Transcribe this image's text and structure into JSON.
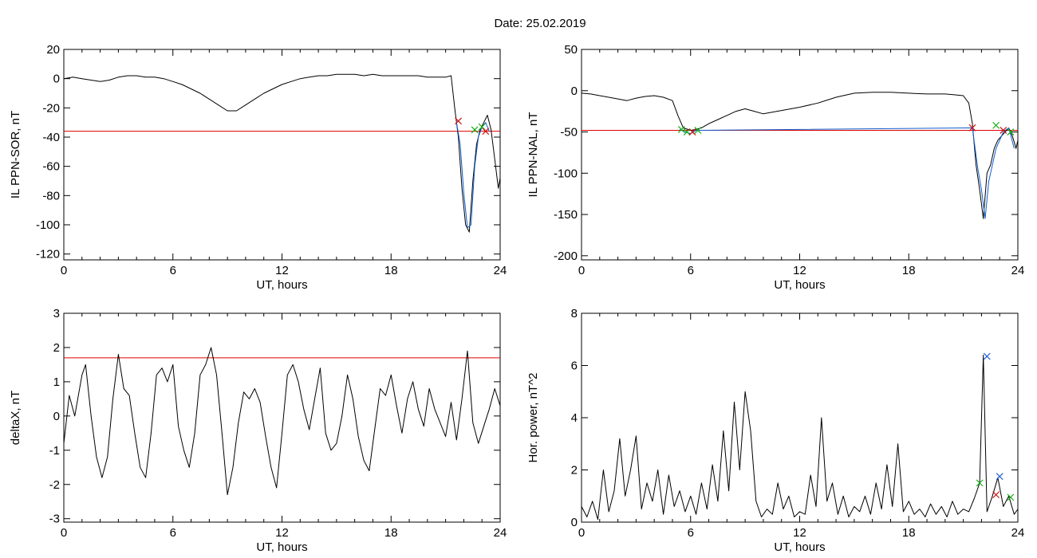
{
  "figure": {
    "date_label": "Date:  25.02.2019"
  },
  "colors": {
    "trace": "#000000",
    "threshold": "#e00000",
    "highlight": "#1060d0",
    "marker_red": "#d01010",
    "marker_green": "#10b010",
    "marker_blue": "#2060d0"
  },
  "chart_data": [
    {
      "id": "sor",
      "type": "line",
      "title": "",
      "xlabel": "UT, hours",
      "ylabel": "IL PPN-SOR, nT",
      "xlim": [
        0,
        24
      ],
      "ylim": [
        -124,
        20
      ],
      "xticks": [
        0,
        6,
        12,
        18,
        24
      ],
      "yticks": [
        20,
        0,
        -20,
        -40,
        -60,
        -80,
        -100,
        -120
      ],
      "threshold": -36,
      "series": [
        {
          "role": "trace",
          "x": [
            0,
            0.5,
            1,
            1.5,
            2,
            2.5,
            3,
            3.5,
            4,
            4.5,
            5,
            5.5,
            6,
            6.5,
            7,
            7.5,
            8,
            8.5,
            9,
            9.5,
            10,
            10.5,
            11,
            11.5,
            12,
            12.5,
            13,
            13.5,
            14,
            14.5,
            15,
            15.5,
            16,
            16.5,
            17,
            17.5,
            18,
            18.5,
            19,
            19.5,
            20,
            20.5,
            21,
            21.3,
            21.5,
            21.7,
            21.9,
            22.1,
            22.3,
            22.5,
            22.7,
            22.9,
            23.1,
            23.3,
            23.5,
            23.7,
            23.9,
            24
          ],
          "y": [
            0,
            1,
            0,
            -1,
            -2,
            -1,
            1,
            2,
            2,
            1,
            1,
            0,
            -2,
            -4,
            -7,
            -10,
            -14,
            -18,
            -22,
            -22,
            -18,
            -14,
            -10,
            -7,
            -4,
            -2,
            0,
            1,
            2,
            2,
            3,
            3,
            3,
            2,
            3,
            2,
            2,
            2,
            2,
            2,
            1,
            1,
            1,
            2,
            -20,
            -40,
            -75,
            -100,
            -105,
            -70,
            -45,
            -35,
            -30,
            -25,
            -35,
            -55,
            -75,
            -68
          ]
        },
        {
          "role": "highlight",
          "x": [
            21.6,
            21.8,
            22,
            22.2,
            22.4,
            22.6,
            22.8,
            23.0,
            23.2,
            23.4
          ],
          "y": [
            -30,
            -45,
            -78,
            -102,
            -100,
            -60,
            -40,
            -33,
            -30,
            -36
          ]
        }
      ],
      "markers": [
        {
          "x": 21.7,
          "y": -29,
          "color": "red"
        },
        {
          "x": 22.6,
          "y": -35,
          "color": "green"
        },
        {
          "x": 23.0,
          "y": -33,
          "color": "green"
        },
        {
          "x": 23.2,
          "y": -36,
          "color": "red"
        }
      ]
    },
    {
      "id": "nal",
      "type": "line",
      "title": "",
      "xlabel": "UT, hours",
      "ylabel": "IL PPN-NAL, nT",
      "xlim": [
        0,
        24
      ],
      "ylim": [
        -205,
        50
      ],
      "xticks": [
        0,
        6,
        12,
        18,
        24
      ],
      "yticks": [
        50,
        0,
        -50,
        -100,
        -150,
        -200
      ],
      "threshold": -48,
      "series": [
        {
          "role": "trace",
          "x": [
            0,
            0.5,
            1,
            1.5,
            2,
            2.5,
            3,
            3.5,
            4,
            4.5,
            5,
            5.3,
            5.6,
            6,
            6.3,
            6.6,
            7,
            7.5,
            8,
            8.5,
            9,
            9.5,
            10,
            11,
            12,
            13,
            14,
            15,
            16,
            17,
            18,
            19,
            20,
            20.5,
            21,
            21.3,
            21.5,
            21.7,
            21.9,
            22.1,
            22.3,
            22.5,
            22.7,
            22.9,
            23.1,
            23.3,
            23.5,
            23.7,
            23.9,
            24
          ],
          "y": [
            -3,
            -4,
            -6,
            -8,
            -10,
            -12,
            -9,
            -7,
            -6,
            -8,
            -12,
            -30,
            -45,
            -48,
            -47,
            -45,
            -40,
            -35,
            -30,
            -25,
            -22,
            -25,
            -28,
            -24,
            -20,
            -15,
            -8,
            -3,
            -2,
            -2,
            -3,
            -4,
            -4,
            -5,
            -6,
            -15,
            -40,
            -90,
            -120,
            -155,
            -100,
            -90,
            -70,
            -60,
            -55,
            -50,
            -45,
            -55,
            -70,
            -60
          ]
        },
        {
          "role": "highlight",
          "x": [
            5.4,
            5.7,
            6.0,
            6.3,
            21.5,
            21.8,
            22.0,
            22.2,
            22.4,
            22.6,
            22.8,
            23.0,
            23.2,
            23.5,
            23.8
          ],
          "y": [
            -47,
            -50,
            -52,
            -48,
            -45,
            -95,
            -120,
            -155,
            -110,
            -90,
            -70,
            -60,
            -50,
            -45,
            -70
          ]
        }
      ],
      "markers": [
        {
          "x": 5.5,
          "y": -47,
          "color": "green"
        },
        {
          "x": 5.8,
          "y": -50,
          "color": "green"
        },
        {
          "x": 6.1,
          "y": -50,
          "color": "red"
        },
        {
          "x": 6.4,
          "y": -48,
          "color": "green"
        },
        {
          "x": 21.5,
          "y": -45,
          "color": "red"
        },
        {
          "x": 22.8,
          "y": -42,
          "color": "green"
        },
        {
          "x": 23.2,
          "y": -48,
          "color": "red"
        },
        {
          "x": 23.6,
          "y": -50,
          "color": "green"
        }
      ]
    },
    {
      "id": "deltax",
      "type": "line",
      "title": "",
      "xlabel": "UT, hours",
      "ylabel": "deltaX, nT",
      "xlim": [
        0,
        24
      ],
      "ylim": [
        -3.1,
        3
      ],
      "xticks": [
        0,
        6,
        12,
        18,
        24
      ],
      "yticks": [
        3,
        2,
        1,
        0,
        -1,
        -2,
        -3
      ],
      "threshold": 1.7,
      "series": [
        {
          "role": "trace",
          "x": [
            0,
            0.3,
            0.6,
            1,
            1.2,
            1.5,
            1.8,
            2.1,
            2.4,
            2.7,
            3,
            3.3,
            3.6,
            3.9,
            4.2,
            4.5,
            4.8,
            5.1,
            5.4,
            5.7,
            6,
            6.3,
            6.6,
            6.9,
            7.2,
            7.5,
            7.8,
            8.1,
            8.4,
            8.7,
            9,
            9.3,
            9.6,
            9.9,
            10.2,
            10.5,
            10.8,
            11.1,
            11.4,
            11.7,
            12,
            12.3,
            12.6,
            12.9,
            13.2,
            13.5,
            13.8,
            14.1,
            14.4,
            14.7,
            15,
            15.3,
            15.6,
            15.9,
            16.2,
            16.5,
            16.8,
            17.1,
            17.4,
            17.7,
            18,
            18.3,
            18.6,
            18.9,
            19.2,
            19.5,
            19.8,
            20.1,
            20.4,
            20.7,
            21,
            21.3,
            21.6,
            21.9,
            22.2,
            22.5,
            22.8,
            23.1,
            23.4,
            23.7,
            24
          ],
          "y": [
            -0.8,
            0.6,
            0,
            1.2,
            1.5,
            0,
            -1.2,
            -1.8,
            -1.2,
            0.5,
            1.8,
            0.8,
            0.6,
            -0.5,
            -1.5,
            -1.8,
            -0.5,
            1.2,
            1.4,
            1.0,
            1.5,
            -0.3,
            -1.0,
            -1.5,
            -0.5,
            1.2,
            1.5,
            2.0,
            1.2,
            -0.5,
            -2.3,
            -1.5,
            -0.2,
            0.7,
            0.5,
            0.8,
            0.4,
            -0.6,
            -1.5,
            -2.1,
            -0.5,
            1.2,
            1.5,
            1.0,
            0.2,
            -0.4,
            0.5,
            1.4,
            -0.5,
            -1.0,
            -0.8,
            0,
            1.2,
            0.5,
            -0.6,
            -1.3,
            -1.6,
            -0.4,
            0.8,
            0.6,
            1.2,
            0.3,
            -0.5,
            0.5,
            1.0,
            0.2,
            -0.3,
            0.8,
            0.2,
            -0.2,
            -0.6,
            0.4,
            -0.7,
            0.5,
            1.9,
            -0.2,
            -0.8,
            -0.3,
            0.2,
            0.8,
            0.3
          ]
        }
      ],
      "markers": []
    },
    {
      "id": "power",
      "type": "line",
      "title": "",
      "xlabel": "UT, hours",
      "ylabel": "Hor. power, nT^2",
      "xlim": [
        0,
        24
      ],
      "ylim": [
        0,
        8
      ],
      "xticks": [
        0,
        6,
        12,
        18,
        24
      ],
      "yticks": [
        8,
        6,
        4,
        2,
        0
      ],
      "threshold": null,
      "series": [
        {
          "role": "trace",
          "x": [
            0,
            0.3,
            0.6,
            0.9,
            1.2,
            1.5,
            1.8,
            2.1,
            2.4,
            2.7,
            3,
            3.3,
            3.6,
            3.9,
            4.2,
            4.5,
            4.8,
            5.1,
            5.4,
            5.7,
            6,
            6.3,
            6.6,
            6.9,
            7.2,
            7.5,
            7.8,
            8.1,
            8.4,
            8.7,
            9,
            9.3,
            9.6,
            9.9,
            10.2,
            10.5,
            10.8,
            11.1,
            11.4,
            11.7,
            12,
            12.3,
            12.6,
            12.9,
            13.2,
            13.5,
            13.8,
            14.1,
            14.4,
            14.7,
            15,
            15.3,
            15.6,
            15.9,
            16.2,
            16.5,
            16.8,
            17.1,
            17.4,
            17.7,
            18,
            18.3,
            18.6,
            18.9,
            19.2,
            19.5,
            19.8,
            20.1,
            20.4,
            20.7,
            21,
            21.3,
            21.6,
            21.9,
            22.1,
            22.3,
            22.6,
            22.9,
            23.2,
            23.5,
            23.8,
            24
          ],
          "y": [
            0.6,
            0.2,
            0.8,
            0.1,
            2.0,
            0.4,
            1.2,
            3.2,
            1.0,
            2.0,
            3.3,
            0.5,
            1.5,
            0.8,
            2.0,
            0.3,
            1.8,
            0.6,
            1.2,
            0.4,
            1.0,
            0.3,
            1.5,
            0.5,
            2.2,
            0.8,
            3.5,
            1.2,
            4.6,
            2.0,
            5.0,
            3.5,
            0.8,
            0.2,
            0.5,
            0.3,
            1.5,
            0.5,
            1.0,
            0.2,
            0.4,
            0.3,
            1.8,
            0.6,
            4.0,
            0.8,
            1.5,
            0.3,
            1.0,
            0.2,
            0.6,
            0.4,
            1.0,
            0.3,
            1.5,
            0.5,
            2.2,
            0.6,
            3.0,
            0.4,
            0.8,
            0.3,
            0.5,
            0.2,
            0.7,
            0.3,
            0.6,
            0.2,
            0.8,
            0.3,
            0.5,
            0.4,
            0.9,
            1.5,
            6.4,
            0.4,
            1.0,
            1.7,
            0.6,
            1.0,
            0.3,
            0.5
          ]
        }
      ],
      "markers": [
        {
          "x": 22.3,
          "y": 6.35,
          "color": "blue"
        },
        {
          "x": 21.9,
          "y": 1.5,
          "color": "green"
        },
        {
          "x": 22.8,
          "y": 1.05,
          "color": "red"
        },
        {
          "x": 23.0,
          "y": 1.75,
          "color": "blue"
        },
        {
          "x": 23.6,
          "y": 0.95,
          "color": "green"
        }
      ]
    }
  ]
}
